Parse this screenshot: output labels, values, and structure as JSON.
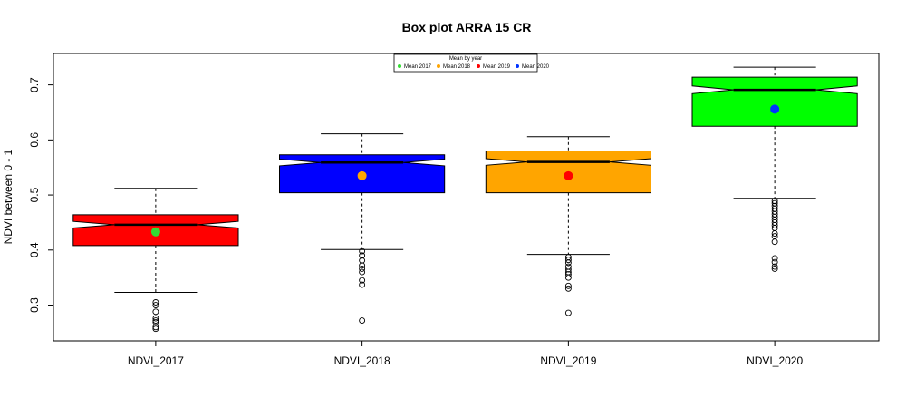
{
  "chart_data": {
    "type": "boxplot",
    "title": "Box plot ARRA 15 CR",
    "xlabel": "",
    "ylabel": "NDVI between 0 - 1",
    "ylim": [
      0.235,
      0.757
    ],
    "yticks": [
      0.3,
      0.4,
      0.5,
      0.6,
      0.7
    ],
    "ytick_labels": [
      "0.3",
      "0.4",
      "0.5",
      "0.6",
      "0.7"
    ],
    "notched": true,
    "grid": false,
    "categories": [
      "NDVI_2017",
      "NDVI_2018",
      "NDVI_2019",
      "NDVI_2020"
    ],
    "boxes": [
      {
        "name": "NDVI_2017",
        "fill": "#ff0000",
        "whisker_low": 0.323,
        "q1": 0.408,
        "median": 0.446,
        "q3": 0.464,
        "whisker_high": 0.512,
        "notch_low": 0.44,
        "notch_high": 0.452,
        "mean": 0.433,
        "mean_color": "#33dd33",
        "outliers": [
          0.305,
          0.3,
          0.288,
          0.276,
          0.272,
          0.269,
          0.26,
          0.257
        ]
      },
      {
        "name": "NDVI_2018",
        "fill": "#0000ff",
        "whisker_low": 0.401,
        "q1": 0.504,
        "median": 0.559,
        "q3": 0.573,
        "whisker_high": 0.611,
        "notch_low": 0.553,
        "notch_high": 0.565,
        "mean": 0.535,
        "mean_color": "#ffa500",
        "outliers": [
          0.398,
          0.39,
          0.381,
          0.372,
          0.366,
          0.36,
          0.345,
          0.337,
          0.272
        ]
      },
      {
        "name": "NDVI_2019",
        "fill": "#ffa500",
        "whisker_low": 0.392,
        "q1": 0.504,
        "median": 0.56,
        "q3": 0.58,
        "whisker_high": 0.606,
        "notch_low": 0.554,
        "notch_high": 0.566,
        "mean": 0.535,
        "mean_color": "#ff0000",
        "outliers": [
          0.387,
          0.382,
          0.377,
          0.37,
          0.365,
          0.36,
          0.356,
          0.35,
          0.335,
          0.33,
          0.286
        ]
      },
      {
        "name": "NDVI_2020",
        "fill": "#00ff00",
        "whisker_low": 0.494,
        "q1": 0.625,
        "median": 0.691,
        "q3": 0.714,
        "whisker_high": 0.732,
        "notch_low": 0.684,
        "notch_high": 0.698,
        "mean": 0.656,
        "mean_color": "#0033ff",
        "outliers": [
          0.489,
          0.485,
          0.48,
          0.475,
          0.47,
          0.465,
          0.46,
          0.455,
          0.45,
          0.445,
          0.44,
          0.43,
          0.425,
          0.415,
          0.385,
          0.378,
          0.37,
          0.366
        ]
      }
    ],
    "legend": {
      "title": "Mean by year",
      "position": "top-center",
      "entries": [
        {
          "label": "Mean 2017",
          "color": "#33dd33"
        },
        {
          "label": "Mean 2018",
          "color": "#ffa500"
        },
        {
          "label": "Mean 2019",
          "color": "#ff0000"
        },
        {
          "label": "Mean 2020",
          "color": "#0033ff"
        }
      ]
    }
  }
}
